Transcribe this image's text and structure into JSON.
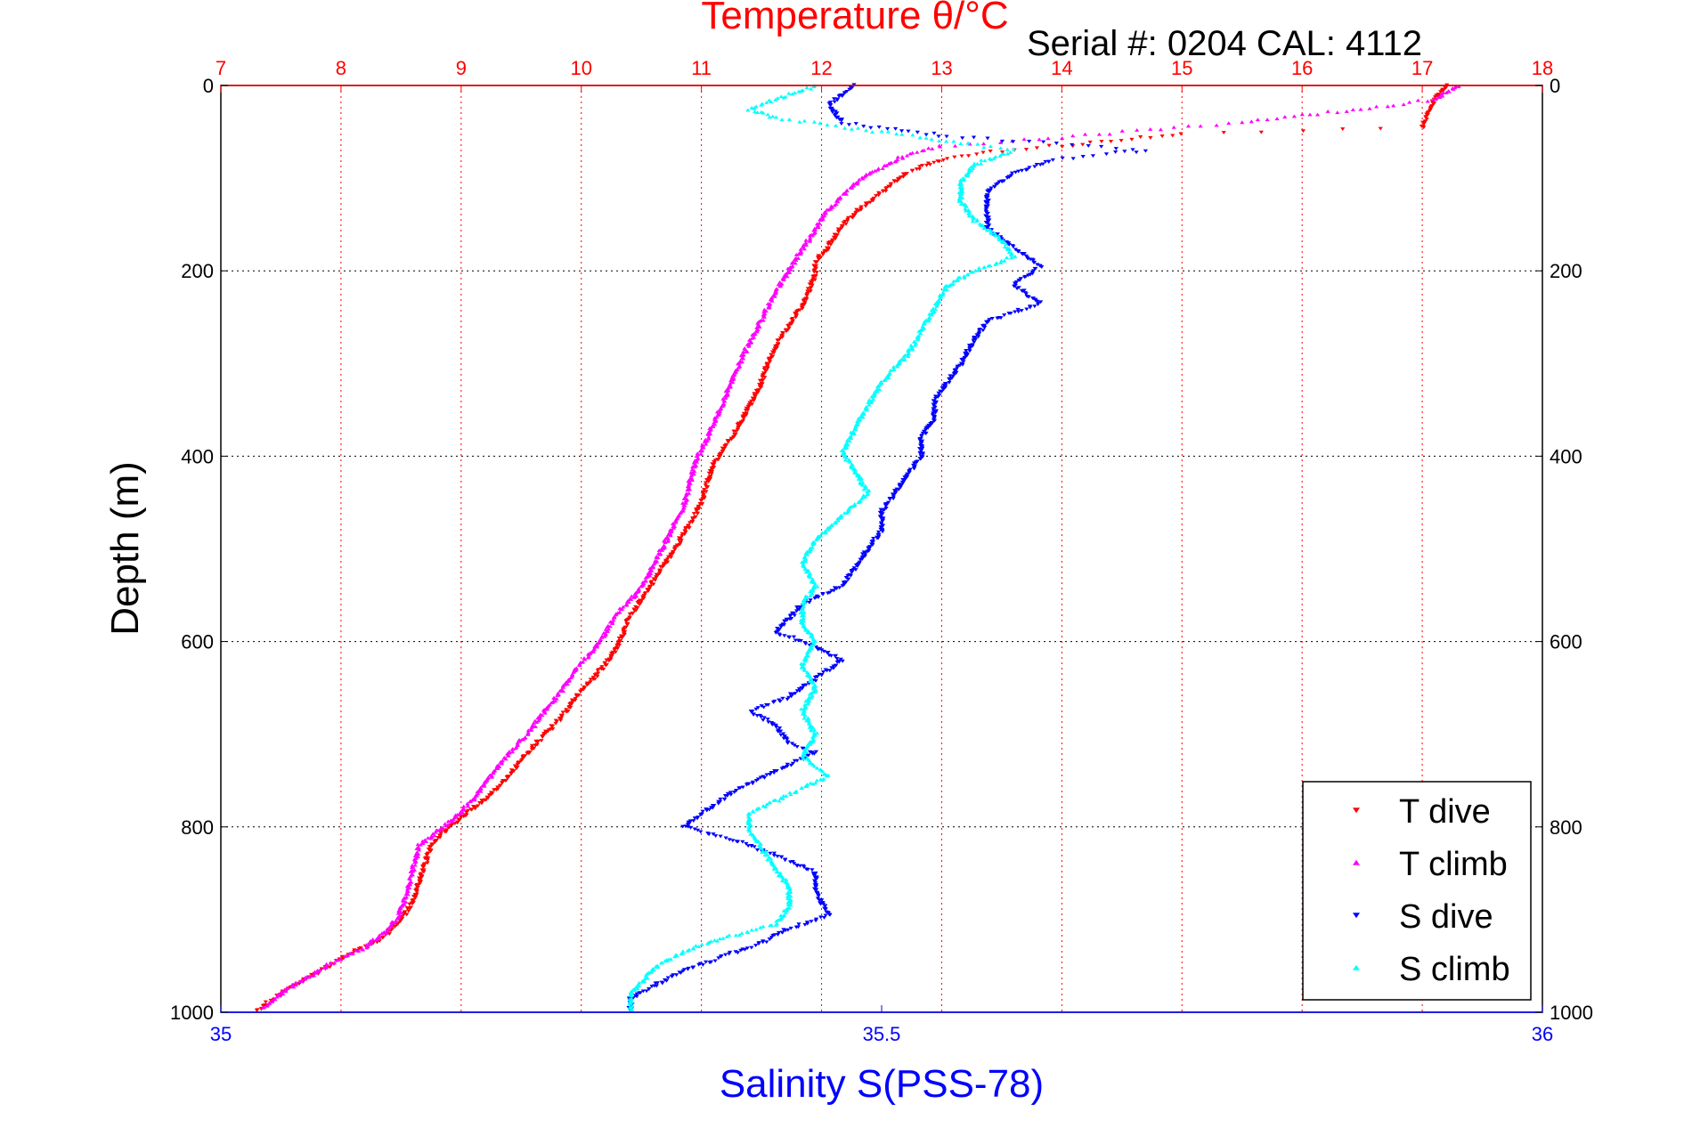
{
  "chart_data": {
    "type": "scatter",
    "title": "Temperature θ/°C",
    "serial_label": "Serial #: 0204  CAL: 4112",
    "ylabel": "Depth (m)",
    "xlabel": "Salinity S(PSS-78)",
    "top_axis": {
      "label": "Temperature θ/°C",
      "range": [
        7,
        18
      ],
      "ticks": [
        7,
        8,
        9,
        10,
        11,
        12,
        13,
        14,
        15,
        16,
        17,
        18
      ],
      "color": "#ff0000"
    },
    "bottom_axis": {
      "label": "Salinity S(PSS-78)",
      "range": [
        35,
        36
      ],
      "ticks": [
        35,
        35.5,
        36
      ],
      "tick_labels": [
        "35",
        "35.5",
        "36"
      ],
      "color": "#0000ff"
    },
    "depth_axis": {
      "range": [
        0,
        1000
      ],
      "reversed": true,
      "ticks": [
        0,
        200,
        400,
        600,
        800,
        1000
      ]
    },
    "grid": true,
    "legend_position": "bottom-right",
    "series": [
      {
        "name": "T dive",
        "axis": "temperature",
        "color": "#ff0000",
        "marker": "triangle-down",
        "points": [
          [
            17.2,
            0
          ],
          [
            17.1,
            15
          ],
          [
            17.05,
            30
          ],
          [
            17.0,
            45
          ],
          [
            15.0,
            52
          ],
          [
            14.0,
            65
          ],
          [
            13.4,
            72
          ],
          [
            13.0,
            80
          ],
          [
            12.7,
            95
          ],
          [
            12.5,
            115
          ],
          [
            12.3,
            135
          ],
          [
            12.15,
            155
          ],
          [
            12.05,
            175
          ],
          [
            11.95,
            190
          ],
          [
            11.95,
            205
          ],
          [
            11.9,
            220
          ],
          [
            11.85,
            235
          ],
          [
            11.75,
            255
          ],
          [
            11.65,
            275
          ],
          [
            11.55,
            300
          ],
          [
            11.5,
            320
          ],
          [
            11.4,
            345
          ],
          [
            11.3,
            370
          ],
          [
            11.2,
            390
          ],
          [
            11.1,
            410
          ],
          [
            11.05,
            430
          ],
          [
            11.0,
            450
          ],
          [
            10.9,
            475
          ],
          [
            10.8,
            495
          ],
          [
            10.7,
            515
          ],
          [
            10.6,
            535
          ],
          [
            10.5,
            555
          ],
          [
            10.4,
            575
          ],
          [
            10.35,
            590
          ],
          [
            10.3,
            605
          ],
          [
            10.2,
            625
          ],
          [
            10.1,
            640
          ],
          [
            9.95,
            660
          ],
          [
            9.85,
            680
          ],
          [
            9.7,
            700
          ],
          [
            9.55,
            720
          ],
          [
            9.4,
            745
          ],
          [
            9.2,
            770
          ],
          [
            9.05,
            785
          ],
          [
            8.9,
            800
          ],
          [
            8.75,
            820
          ],
          [
            8.7,
            840
          ],
          [
            8.65,
            860
          ],
          [
            8.6,
            880
          ],
          [
            8.5,
            900
          ],
          [
            8.35,
            920
          ],
          [
            8.1,
            935
          ],
          [
            7.9,
            950
          ],
          [
            7.7,
            965
          ],
          [
            7.5,
            980
          ],
          [
            7.3,
            998
          ]
        ]
      },
      {
        "name": "T climb",
        "axis": "temperature",
        "color": "#ff00ff",
        "marker": "triangle-up",
        "points": [
          [
            17.3,
            0
          ],
          [
            17.1,
            15
          ],
          [
            16.5,
            25
          ],
          [
            15.5,
            40
          ],
          [
            14.5,
            50
          ],
          [
            13.6,
            60
          ],
          [
            13.0,
            65
          ],
          [
            12.7,
            75
          ],
          [
            12.4,
            95
          ],
          [
            12.2,
            115
          ],
          [
            12.05,
            135
          ],
          [
            11.95,
            155
          ],
          [
            11.85,
            175
          ],
          [
            11.75,
            195
          ],
          [
            11.65,
            215
          ],
          [
            11.55,
            240
          ],
          [
            11.45,
            265
          ],
          [
            11.35,
            290
          ],
          [
            11.25,
            320
          ],
          [
            11.15,
            350
          ],
          [
            11.05,
            380
          ],
          [
            10.95,
            405
          ],
          [
            10.9,
            430
          ],
          [
            10.85,
            455
          ],
          [
            10.75,
            480
          ],
          [
            10.65,
            505
          ],
          [
            10.55,
            530
          ],
          [
            10.45,
            550
          ],
          [
            10.3,
            570
          ],
          [
            10.2,
            590
          ],
          [
            10.1,
            610
          ],
          [
            9.95,
            630
          ],
          [
            9.85,
            650
          ],
          [
            9.7,
            675
          ],
          [
            9.55,
            700
          ],
          [
            9.4,
            720
          ],
          [
            9.25,
            745
          ],
          [
            9.1,
            770
          ],
          [
            8.95,
            790
          ],
          [
            8.8,
            805
          ],
          [
            8.65,
            820
          ],
          [
            8.6,
            845
          ],
          [
            8.55,
            870
          ],
          [
            8.5,
            890
          ],
          [
            8.4,
            910
          ],
          [
            8.2,
            930
          ],
          [
            7.95,
            945
          ],
          [
            7.75,
            960
          ],
          [
            7.55,
            975
          ],
          [
            7.35,
            995
          ]
        ]
      },
      {
        "name": "S dive",
        "axis": "salinity",
        "color": "#0000ff",
        "marker": "triangle-down",
        "points": [
          [
            35.48,
            0
          ],
          [
            35.46,
            20
          ],
          [
            35.47,
            40
          ],
          [
            35.55,
            55
          ],
          [
            35.6,
            60
          ],
          [
            35.7,
            70
          ],
          [
            35.63,
            80
          ],
          [
            35.6,
            95
          ],
          [
            35.58,
            115
          ],
          [
            35.58,
            135
          ],
          [
            35.58,
            155
          ],
          [
            35.6,
            175
          ],
          [
            35.62,
            195
          ],
          [
            35.6,
            215
          ],
          [
            35.62,
            235
          ],
          [
            35.58,
            255
          ],
          [
            35.57,
            275
          ],
          [
            35.56,
            300
          ],
          [
            35.55,
            320
          ],
          [
            35.54,
            340
          ],
          [
            35.54,
            360
          ],
          [
            35.53,
            380
          ],
          [
            35.53,
            400
          ],
          [
            35.52,
            420
          ],
          [
            35.51,
            440
          ],
          [
            35.5,
            460
          ],
          [
            35.5,
            480
          ],
          [
            35.49,
            500
          ],
          [
            35.48,
            520
          ],
          [
            35.47,
            540
          ],
          [
            35.44,
            560
          ],
          [
            35.43,
            575
          ],
          [
            35.42,
            590
          ],
          [
            35.45,
            605
          ],
          [
            35.47,
            620
          ],
          [
            35.45,
            640
          ],
          [
            35.43,
            660
          ],
          [
            35.4,
            675
          ],
          [
            35.42,
            690
          ],
          [
            35.43,
            710
          ],
          [
            35.45,
            720
          ],
          [
            35.42,
            740
          ],
          [
            35.39,
            760
          ],
          [
            35.37,
            780
          ],
          [
            35.35,
            800
          ],
          [
            35.39,
            815
          ],
          [
            35.42,
            830
          ],
          [
            35.45,
            850
          ],
          [
            35.45,
            870
          ],
          [
            35.46,
            895
          ],
          [
            35.43,
            910
          ],
          [
            35.41,
            925
          ],
          [
            35.38,
            940
          ],
          [
            35.35,
            955
          ],
          [
            35.33,
            970
          ],
          [
            35.31,
            985
          ],
          [
            35.31,
            998
          ]
        ]
      },
      {
        "name": "S climb",
        "axis": "salinity",
        "color": "#00ffff",
        "marker": "triangle-up",
        "points": [
          [
            35.45,
            0
          ],
          [
            35.4,
            25
          ],
          [
            35.42,
            35
          ],
          [
            35.5,
            50
          ],
          [
            35.55,
            60
          ],
          [
            35.6,
            70
          ],
          [
            35.57,
            85
          ],
          [
            35.56,
            105
          ],
          [
            35.56,
            125
          ],
          [
            35.57,
            145
          ],
          [
            35.59,
            165
          ],
          [
            35.6,
            185
          ],
          [
            35.57,
            200
          ],
          [
            35.55,
            215
          ],
          [
            35.54,
            240
          ],
          [
            35.53,
            265
          ],
          [
            35.52,
            290
          ],
          [
            35.5,
            320
          ],
          [
            35.49,
            345
          ],
          [
            35.48,
            370
          ],
          [
            35.47,
            395
          ],
          [
            35.48,
            415
          ],
          [
            35.49,
            440
          ],
          [
            35.47,
            465
          ],
          [
            35.45,
            490
          ],
          [
            35.44,
            515
          ],
          [
            35.45,
            540
          ],
          [
            35.44,
            560
          ],
          [
            35.44,
            580
          ],
          [
            35.45,
            600
          ],
          [
            35.44,
            625
          ],
          [
            35.45,
            650
          ],
          [
            35.44,
            675
          ],
          [
            35.45,
            700
          ],
          [
            35.44,
            725
          ],
          [
            35.46,
            745
          ],
          [
            35.43,
            765
          ],
          [
            35.4,
            785
          ],
          [
            35.4,
            805
          ],
          [
            35.41,
            825
          ],
          [
            35.42,
            845
          ],
          [
            35.43,
            865
          ],
          [
            35.43,
            885
          ],
          [
            35.42,
            905
          ],
          [
            35.38,
            920
          ],
          [
            35.35,
            935
          ],
          [
            35.33,
            950
          ],
          [
            35.32,
            965
          ],
          [
            35.31,
            980
          ],
          [
            35.31,
            998
          ]
        ]
      }
    ]
  }
}
